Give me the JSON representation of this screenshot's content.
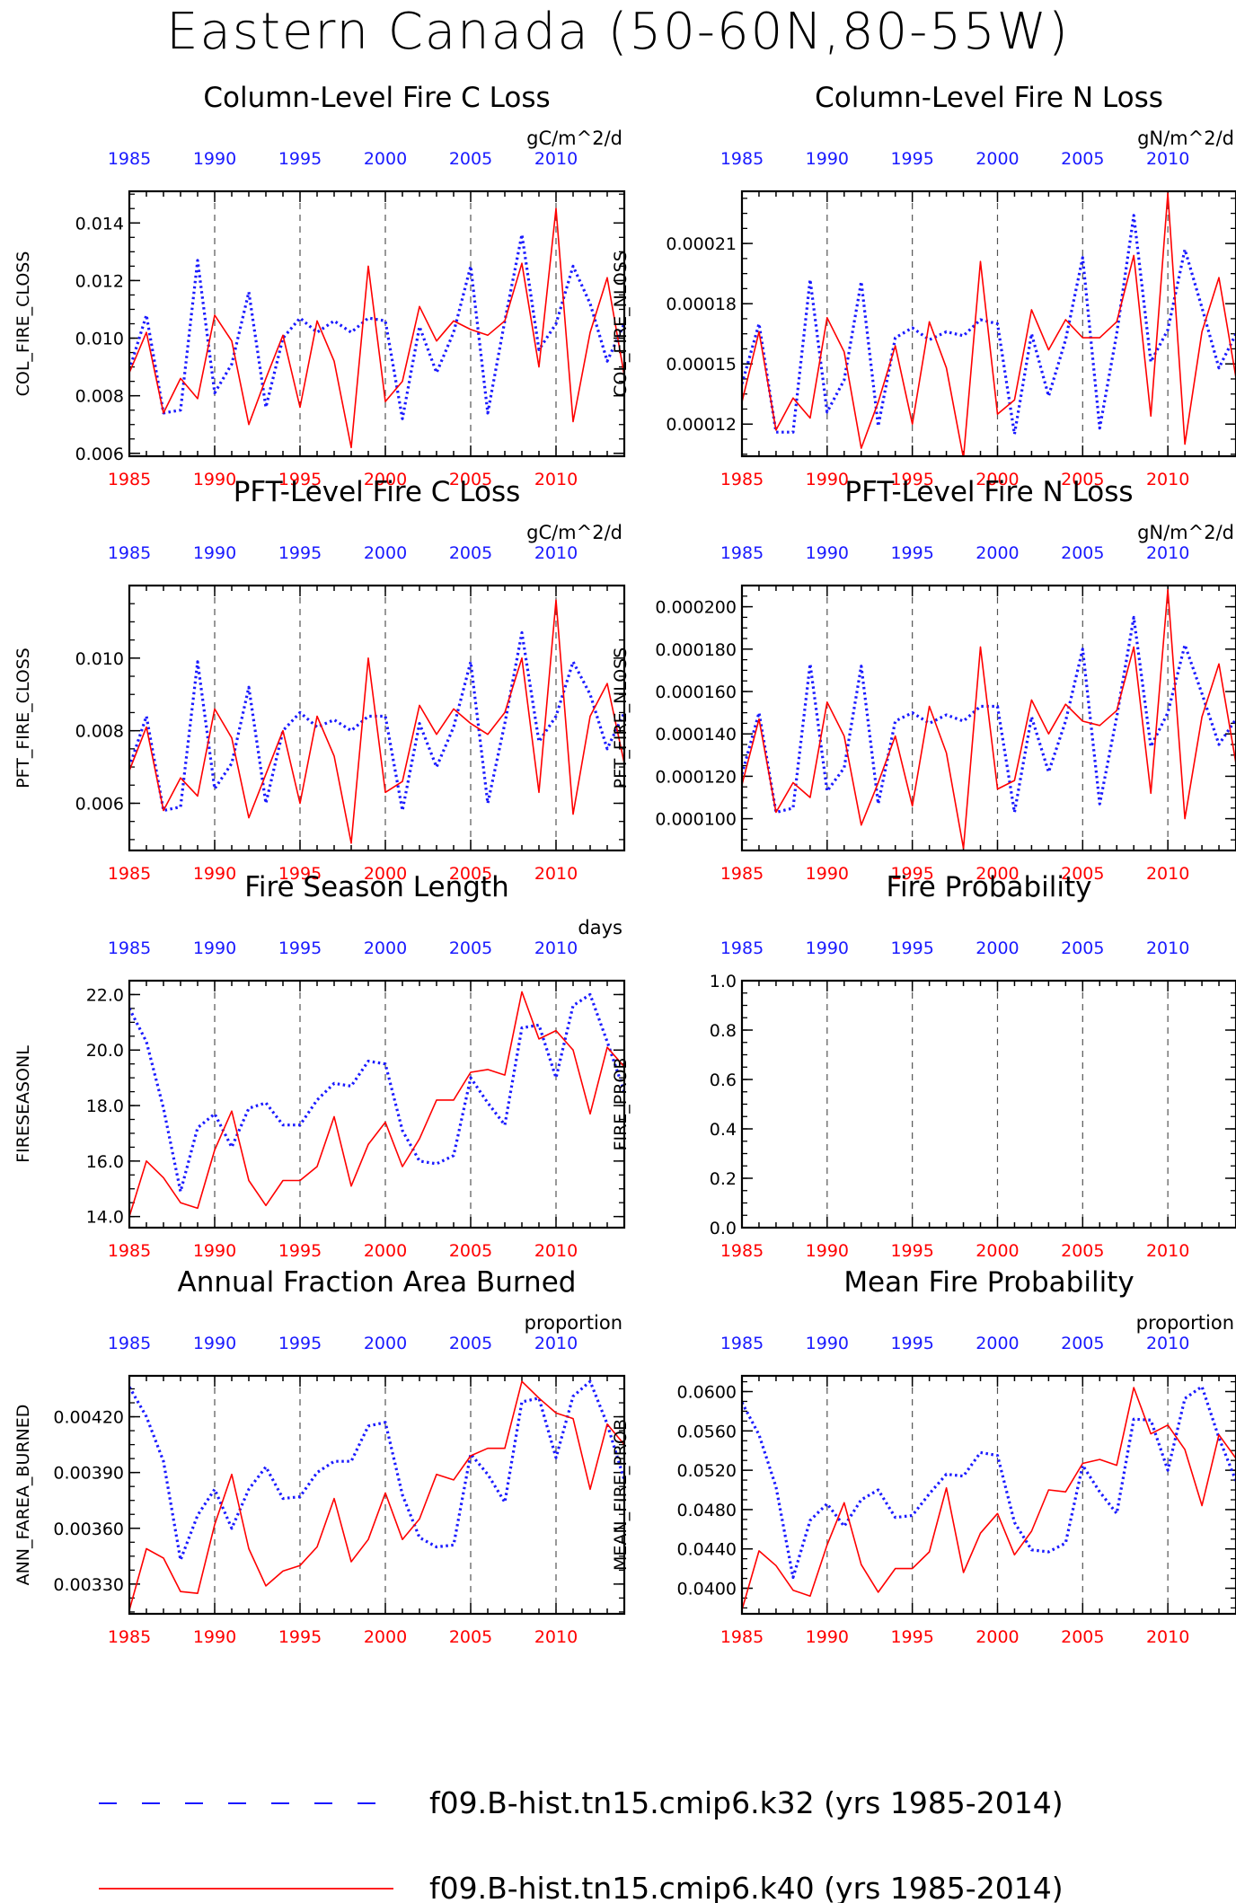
{
  "main_title": "Eastern Canada (50-60N,80-55W)",
  "colors": {
    "blue_series": "#1a1aff",
    "red_series": "#ff0000",
    "axis": "#000000",
    "grid": "#555555"
  },
  "legend": [
    {
      "label": "f09.B-hist.tn15.cmip6.k32 (yrs 1985-2014)",
      "color": "#1a1aff",
      "style": "dashed"
    },
    {
      "label": "f09.B-hist.tn15.cmip6.k40 (yrs 1985-2014)",
      "color": "#ff0000",
      "style": "solid"
    }
  ],
  "chart_data": [
    {
      "type": "line",
      "title": "Column-Level Fire C Loss",
      "units": "gC/m^2/d",
      "ylabel": "COL_FIRE_CLOSS",
      "xlim": [
        1985,
        2014
      ],
      "ylim": [
        0.0059,
        0.0151
      ],
      "yticks": [
        0.006,
        0.008,
        0.01,
        0.012,
        0.014
      ],
      "ytick_labels": [
        "0.006",
        "0.008",
        "0.010",
        "0.012",
        "0.014"
      ],
      "xticks": [
        1985,
        1990,
        1995,
        2000,
        2005,
        2010
      ],
      "xtick_labels": [
        "1985",
        "1990",
        "1995",
        "2000",
        "2005",
        "2010"
      ],
      "grid": "vertical dashed at 1990, 1995, 2000, 2005, 2010",
      "x": [
        1985,
        1986,
        1987,
        1988,
        1989,
        1990,
        1991,
        1992,
        1993,
        1994,
        1995,
        1996,
        1997,
        1998,
        1999,
        2000,
        2001,
        2002,
        2003,
        2004,
        2005,
        2006,
        2007,
        2008,
        2009,
        2010,
        2011,
        2012,
        2013,
        2014
      ],
      "series": [
        {
          "color": "blue",
          "values": [
            0.0089,
            0.0108,
            0.0074,
            0.0075,
            0.0127,
            0.0081,
            0.0091,
            0.0116,
            0.0076,
            0.01,
            0.0107,
            0.0102,
            0.0106,
            0.0102,
            0.0107,
            0.0106,
            0.0072,
            0.0104,
            0.0088,
            0.0102,
            0.0125,
            0.0074,
            0.0106,
            0.0136,
            0.0096,
            0.0105,
            0.0125,
            0.0112,
            0.0092,
            0.0105
          ]
        },
        {
          "color": "red",
          "values": [
            0.0088,
            0.0102,
            0.0074,
            0.0086,
            0.0079,
            0.0108,
            0.0099,
            0.007,
            0.0086,
            0.0101,
            0.0076,
            0.0106,
            0.0092,
            0.0062,
            0.0125,
            0.0078,
            0.0085,
            0.0111,
            0.0099,
            0.0106,
            0.0103,
            0.0101,
            0.0106,
            0.0126,
            0.009,
            0.0145,
            0.0071,
            0.0102,
            0.0121,
            0.0087
          ]
        }
      ]
    },
    {
      "type": "line",
      "title": "Column-Level Fire N Loss",
      "units": "gN/m^2/d",
      "ylabel": "COL_FIRE_NLOSS",
      "xlim": [
        1985,
        2014
      ],
      "ylim": [
        0.000104,
        0.000236
      ],
      "yticks": [
        0.00012,
        0.00015,
        0.00018,
        0.00021
      ],
      "ytick_labels": [
        "0.00012",
        "0.00015",
        "0.00018",
        "0.00021"
      ],
      "xticks": [
        1985,
        1990,
        1995,
        2000,
        2005,
        2010
      ],
      "xtick_labels": [
        "1985",
        "1990",
        "1995",
        "2000",
        "2005",
        "2010"
      ],
      "grid": "vertical dashed at 1990, 1995, 2000, 2005, 2010",
      "x": [
        1985,
        1986,
        1987,
        1988,
        1989,
        1990,
        1991,
        1992,
        1993,
        1994,
        1995,
        1996,
        1997,
        1998,
        1999,
        2000,
        2001,
        2002,
        2003,
        2004,
        2005,
        2006,
        2007,
        2008,
        2009,
        2010,
        2011,
        2012,
        2013,
        2014
      ],
      "series": [
        {
          "color": "blue",
          "values": [
            0.00014,
            0.00017,
            0.000116,
            0.000116,
            0.000192,
            0.000126,
            0.000142,
            0.000191,
            0.000119,
            0.000163,
            0.000168,
            0.000162,
            0.000166,
            0.000164,
            0.000172,
            0.00017,
            0.000115,
            0.000165,
            0.000134,
            0.000162,
            0.000203,
            0.000118,
            0.000165,
            0.000224,
            0.000151,
            0.000167,
            0.000207,
            0.000178,
            0.000148,
            0.000165
          ]
        },
        {
          "color": "red",
          "values": [
            0.000131,
            0.000166,
            0.000117,
            0.000133,
            0.000123,
            0.000173,
            0.000156,
            0.000108,
            0.000131,
            0.000159,
            0.00012,
            0.000171,
            0.000148,
            0.000103,
            0.000201,
            0.000125,
            0.000132,
            0.000177,
            0.000157,
            0.000172,
            0.000163,
            0.000163,
            0.000171,
            0.000204,
            0.000124,
            0.000235,
            0.00011,
            0.000166,
            0.000193,
            0.000143
          ]
        }
      ]
    },
    {
      "type": "line",
      "title": "PFT-Level Fire C Loss",
      "units": "gC/m^2/d",
      "ylabel": "PFT_FIRE_CLOSS",
      "xlim": [
        1985,
        2014
      ],
      "ylim": [
        0.0047,
        0.012
      ],
      "yticks": [
        0.006,
        0.008,
        0.01
      ],
      "ytick_labels": [
        "0.006",
        "0.008",
        "0.010"
      ],
      "xticks": [
        1985,
        1990,
        1995,
        2000,
        2005,
        2010
      ],
      "xtick_labels": [
        "1985",
        "1990",
        "1995",
        "2000",
        "2005",
        "2010"
      ],
      "grid": "vertical dashed at 1990, 1995, 2000, 2005, 2010",
      "x": [
        1985,
        1986,
        1987,
        1988,
        1989,
        1990,
        1991,
        1992,
        1993,
        1994,
        1995,
        1996,
        1997,
        1998,
        1999,
        2000,
        2001,
        2002,
        2003,
        2004,
        2005,
        2006,
        2007,
        2008,
        2009,
        2010,
        2011,
        2012,
        2013,
        2014
      ],
      "series": [
        {
          "color": "blue",
          "values": [
            0.007,
            0.0084,
            0.0058,
            0.0059,
            0.0099,
            0.0064,
            0.0071,
            0.0092,
            0.006,
            0.008,
            0.0085,
            0.0081,
            0.0083,
            0.008,
            0.0084,
            0.0084,
            0.0058,
            0.0082,
            0.007,
            0.0081,
            0.0099,
            0.006,
            0.0082,
            0.0107,
            0.0077,
            0.0084,
            0.0099,
            0.009,
            0.0075,
            0.0085
          ]
        },
        {
          "color": "red",
          "values": [
            0.0069,
            0.0081,
            0.0058,
            0.0067,
            0.0062,
            0.0086,
            0.0078,
            0.0056,
            0.0068,
            0.008,
            0.006,
            0.0084,
            0.0073,
            0.0049,
            0.01,
            0.0063,
            0.0066,
            0.0087,
            0.0079,
            0.0086,
            0.0082,
            0.0079,
            0.0085,
            0.01,
            0.0063,
            0.0116,
            0.0057,
            0.0084,
            0.0093,
            0.0071
          ]
        }
      ]
    },
    {
      "type": "line",
      "title": "PFT-Level Fire N Loss",
      "units": "gN/m^2/d",
      "ylabel": "PFT_FIRE_NLOSS",
      "xlim": [
        1985,
        2014
      ],
      "ylim": [
        8.5e-05,
        0.00021
      ],
      "yticks": [
        0.0001,
        0.00012,
        0.00014,
        0.00016,
        0.00018,
        0.0002
      ],
      "ytick_labels": [
        "0.000100",
        "0.000120",
        "0.000140",
        "0.000160",
        "0.000180",
        "0.000200"
      ],
      "xticks": [
        1985,
        1990,
        1995,
        2000,
        2005,
        2010
      ],
      "xtick_labels": [
        "1985",
        "1990",
        "1995",
        "2000",
        "2005",
        "2010"
      ],
      "grid": "vertical dashed at 1990, 1995, 2000, 2005, 2010",
      "x": [
        1985,
        1986,
        1987,
        1988,
        1989,
        1990,
        1991,
        1992,
        1993,
        1994,
        1995,
        1996,
        1997,
        1998,
        1999,
        2000,
        2001,
        2002,
        2003,
        2004,
        2005,
        2006,
        2007,
        2008,
        2009,
        2010,
        2011,
        2012,
        2013,
        2014
      ],
      "series": [
        {
          "color": "blue",
          "values": [
            0.000121,
            0.00015,
            0.000103,
            0.000105,
            0.000173,
            0.000113,
            0.000124,
            0.000172,
            0.000107,
            0.000146,
            0.00015,
            0.000145,
            0.000149,
            0.000146,
            0.000153,
            0.000153,
            0.000103,
            0.000148,
            0.000122,
            0.000146,
            0.00018,
            0.000107,
            0.000148,
            0.000195,
            0.000134,
            0.00015,
            0.000182,
            0.000159,
            0.000135,
            0.000147
          ]
        },
        {
          "color": "red",
          "values": [
            0.000116,
            0.000147,
            0.000103,
            0.000117,
            0.00011,
            0.000155,
            0.000139,
            9.7e-05,
            0.000117,
            0.000139,
            0.000106,
            0.000153,
            0.000131,
            8.6e-05,
            0.000181,
            0.000114,
            0.000118,
            0.000156,
            0.00014,
            0.000154,
            0.000146,
            0.000144,
            0.000151,
            0.000181,
            0.000112,
            0.000208,
            0.0001,
            0.000148,
            0.000173,
            0.000126
          ]
        }
      ]
    },
    {
      "type": "line",
      "title": "Fire Season Length",
      "units": "days",
      "ylabel": "FIRESEASONL",
      "xlim": [
        1985,
        2014
      ],
      "ylim": [
        13.6,
        22.5
      ],
      "yticks": [
        14,
        16,
        18,
        20,
        22
      ],
      "ytick_labels": [
        "14.0",
        "16.0",
        "18.0",
        "20.0",
        "22.0"
      ],
      "xticks": [
        1985,
        1990,
        1995,
        2000,
        2005,
        2010
      ],
      "xtick_labels": [
        "1985",
        "1990",
        "1995",
        "2000",
        "2005",
        "2010"
      ],
      "grid": "vertical dashed at 1990, 1995, 2000, 2005, 2010",
      "x": [
        1985,
        1986,
        1987,
        1988,
        1989,
        1990,
        1991,
        1992,
        1993,
        1994,
        1995,
        1996,
        1997,
        1998,
        1999,
        2000,
        2001,
        2002,
        2003,
        2004,
        2005,
        2006,
        2007,
        2008,
        2009,
        2010,
        2011,
        2012,
        2013,
        2014
      ],
      "series": [
        {
          "color": "blue",
          "values": [
            21.5,
            20.3,
            17.9,
            14.9,
            17.2,
            17.7,
            16.5,
            17.9,
            18.1,
            17.3,
            17.3,
            18.2,
            18.8,
            18.7,
            19.6,
            19.5,
            17.1,
            16.0,
            15.9,
            16.2,
            19.0,
            18.1,
            17.3,
            20.8,
            20.9,
            19.0,
            21.6,
            22.0,
            20.3,
            18.5
          ]
        },
        {
          "color": "red",
          "values": [
            14.0,
            16.0,
            15.4,
            14.5,
            14.3,
            16.4,
            17.8,
            15.3,
            14.4,
            15.3,
            15.3,
            15.8,
            17.6,
            15.1,
            16.6,
            17.4,
            15.8,
            16.8,
            18.2,
            18.2,
            19.2,
            19.3,
            19.1,
            22.1,
            20.4,
            20.7,
            20.0,
            17.7,
            20.1,
            19.4
          ]
        }
      ]
    },
    {
      "type": "line",
      "title": "Fire Probability",
      "units": "",
      "ylabel": "FIRE_PROB",
      "xlim": [
        1985,
        2014
      ],
      "ylim": [
        0.0,
        1.0
      ],
      "yticks": [
        0.0,
        0.2,
        0.4,
        0.6,
        0.8,
        1.0
      ],
      "ytick_labels": [
        "0.0",
        "0.2",
        "0.4",
        "0.6",
        "0.8",
        "1.0"
      ],
      "xticks": [
        1985,
        1990,
        1995,
        2000,
        2005,
        2010
      ],
      "xtick_labels": [
        "1985",
        "1990",
        "1995",
        "2000",
        "2005",
        "2010"
      ],
      "grid": "vertical dashed at 1990, 1995, 2000, 2005, 2010",
      "x": [],
      "series": []
    },
    {
      "type": "line",
      "title": "Annual Fraction Area Burned",
      "units": "proportion",
      "ylabel": "ANN_FAREA_BURNED",
      "xlim": [
        1985,
        2014
      ],
      "ylim": [
        0.00314,
        0.00442
      ],
      "yticks": [
        0.0033,
        0.0036,
        0.0039,
        0.0042
      ],
      "ytick_labels": [
        "0.00330",
        "0.00360",
        "0.00390",
        "0.00420"
      ],
      "xticks": [
        1985,
        1990,
        1995,
        2000,
        2005,
        2010
      ],
      "xtick_labels": [
        "1985",
        "1990",
        "1995",
        "2000",
        "2005",
        "2010"
      ],
      "grid": "vertical dashed at 1990, 1995, 2000, 2005, 2010",
      "x": [
        1985,
        1986,
        1987,
        1988,
        1989,
        1990,
        1991,
        1992,
        1993,
        1994,
        1995,
        1996,
        1997,
        1998,
        1999,
        2000,
        2001,
        2002,
        2003,
        2004,
        2005,
        2006,
        2007,
        2008,
        2009,
        2010,
        2011,
        2012,
        2013,
        2014
      ],
      "series": [
        {
          "color": "blue",
          "values": [
            0.00436,
            0.0042,
            0.00396,
            0.00343,
            0.00367,
            0.00381,
            0.0036,
            0.00381,
            0.00393,
            0.00376,
            0.00377,
            0.0039,
            0.00396,
            0.00396,
            0.00415,
            0.00417,
            0.00378,
            0.00355,
            0.0035,
            0.00351,
            0.004,
            0.00389,
            0.00374,
            0.00428,
            0.0043,
            0.00398,
            0.00431,
            0.00439,
            0.00416,
            0.00386
          ]
        },
        {
          "color": "red",
          "values": [
            0.00316,
            0.00349,
            0.00344,
            0.00326,
            0.00325,
            0.00362,
            0.00389,
            0.00349,
            0.00329,
            0.00337,
            0.0034,
            0.0035,
            0.00376,
            0.00342,
            0.00354,
            0.00379,
            0.00354,
            0.00365,
            0.00389,
            0.00386,
            0.00399,
            0.00403,
            0.00403,
            0.00439,
            0.0043,
            0.00422,
            0.00419,
            0.00381,
            0.00416,
            0.00405
          ]
        }
      ]
    },
    {
      "type": "line",
      "title": "Mean Fire Probability",
      "units": "proportion",
      "ylabel": "MEAN_FIRE_PROB",
      "xlim": [
        1985,
        2014
      ],
      "ylim": [
        0.0374,
        0.0616
      ],
      "yticks": [
        0.04,
        0.044,
        0.048,
        0.052,
        0.056,
        0.06
      ],
      "ytick_labels": [
        "0.0400",
        "0.0440",
        "0.0480",
        "0.0520",
        "0.0560",
        "0.0600"
      ],
      "xticks": [
        1985,
        1990,
        1995,
        2000,
        2005,
        2010
      ],
      "xtick_labels": [
        "1985",
        "1990",
        "1995",
        "2000",
        "2005",
        "2010"
      ],
      "grid": "vertical dashed at 1990, 1995, 2000, 2005, 2010",
      "x": [
        1985,
        1986,
        1987,
        1988,
        1989,
        1990,
        1991,
        1992,
        1993,
        1994,
        1995,
        1996,
        1997,
        1998,
        1999,
        2000,
        2001,
        2002,
        2003,
        2004,
        2005,
        2006,
        2007,
        2008,
        2009,
        2010,
        2011,
        2012,
        2013,
        2014
      ],
      "series": [
        {
          "color": "blue",
          "values": [
            0.0589,
            0.0556,
            0.0503,
            0.0411,
            0.0469,
            0.0486,
            0.0463,
            0.049,
            0.05,
            0.0472,
            0.0474,
            0.0496,
            0.0516,
            0.0514,
            0.0538,
            0.0535,
            0.0467,
            0.0439,
            0.0437,
            0.0446,
            0.0525,
            0.0498,
            0.0476,
            0.0572,
            0.0571,
            0.052,
            0.0593,
            0.0605,
            0.0553,
            0.0509
          ]
        },
        {
          "color": "red",
          "values": [
            0.0378,
            0.0438,
            0.0423,
            0.0398,
            0.0392,
            0.0444,
            0.0487,
            0.0424,
            0.0396,
            0.042,
            0.042,
            0.0437,
            0.0502,
            0.0416,
            0.0456,
            0.0476,
            0.0434,
            0.0458,
            0.05,
            0.0498,
            0.0527,
            0.0531,
            0.0525,
            0.0604,
            0.0557,
            0.0566,
            0.0541,
            0.0484,
            0.0556,
            0.0532
          ]
        }
      ]
    }
  ]
}
